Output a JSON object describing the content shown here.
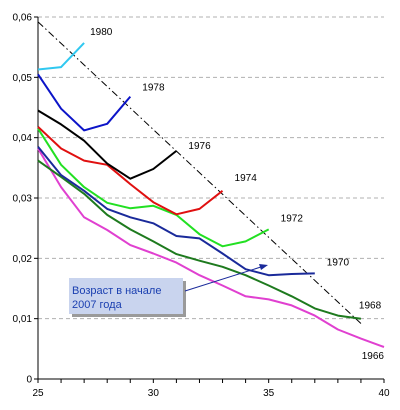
{
  "chart_data": {
    "type": "line",
    "title": "",
    "xlabel": "",
    "ylabel": "",
    "xlim": [
      25,
      40
    ],
    "ylim": [
      0,
      0.06
    ],
    "x_ticks": [
      25,
      30,
      35,
      40
    ],
    "y_ticks": [
      "0",
      "0,01",
      "0,02",
      "0,03",
      "0,04",
      "0,05",
      "0,06"
    ],
    "grid": "horizontal dashed",
    "series": [
      {
        "name": "1966",
        "color": "#e040d0",
        "x": [
          25,
          26,
          27,
          28,
          29,
          30,
          31,
          32,
          33,
          34,
          35,
          36,
          37,
          38,
          39,
          40
        ],
        "y": [
          0.0382,
          0.0318,
          0.0268,
          0.0247,
          0.0222,
          0.0208,
          0.0193,
          0.0172,
          0.0155,
          0.0137,
          0.0132,
          0.0122,
          0.0105,
          0.0082,
          0.0067,
          0.0053
        ]
      },
      {
        "name": "1968",
        "color": "#1e7a1e",
        "x": [
          25,
          26,
          27,
          28,
          29,
          30,
          31,
          32,
          33,
          34,
          35,
          36,
          37,
          38,
          39
        ],
        "y": [
          0.0362,
          0.0335,
          0.0307,
          0.0272,
          0.0248,
          0.0228,
          0.0207,
          0.0196,
          0.0186,
          0.0172,
          0.0155,
          0.0137,
          0.0117,
          0.0105,
          0.01
        ]
      },
      {
        "name": "1970",
        "color": "#1a2a9a",
        "x": [
          25,
          26,
          27,
          28,
          29,
          30,
          31,
          32,
          33,
          34,
          35,
          36,
          37
        ],
        "y": [
          0.0385,
          0.0338,
          0.0312,
          0.0282,
          0.0268,
          0.0258,
          0.0237,
          0.0233,
          0.0208,
          0.0182,
          0.0172,
          0.0174,
          0.0175
        ]
      },
      {
        "name": "1972",
        "color": "#22e022",
        "x": [
          25,
          26,
          27,
          28,
          29,
          30,
          31,
          32,
          33,
          34,
          35
        ],
        "y": [
          0.0415,
          0.0355,
          0.0318,
          0.0292,
          0.0283,
          0.0287,
          0.0272,
          0.024,
          0.022,
          0.0228,
          0.0248
        ]
      },
      {
        "name": "1974",
        "color": "#e01010",
        "x": [
          25,
          26,
          27,
          28,
          29,
          30,
          31,
          32,
          33
        ],
        "y": [
          0.0418,
          0.0382,
          0.0362,
          0.0355,
          0.0323,
          0.0293,
          0.0273,
          0.0282,
          0.0312
        ]
      },
      {
        "name": "1976",
        "color": "#000000",
        "x": [
          25,
          26,
          27,
          28,
          29,
          30,
          31
        ],
        "y": [
          0.0445,
          0.0422,
          0.0395,
          0.0357,
          0.0332,
          0.0348,
          0.0378
        ]
      },
      {
        "name": "1978",
        "color": "#0c14c8",
        "x": [
          25,
          26,
          27,
          28,
          29
        ],
        "y": [
          0.0505,
          0.0448,
          0.0412,
          0.0423,
          0.0468
        ]
      },
      {
        "name": "1980",
        "color": "#30c8f0",
        "x": [
          25,
          26,
          27
        ],
        "y": [
          0.0513,
          0.0517,
          0.0557
        ]
      }
    ],
    "trend_line": {
      "style": "dash-dot",
      "color": "#000000",
      "x": [
        25,
        39
      ],
      "y": [
        0.0592,
        0.0092
      ]
    },
    "annotation": {
      "text_lines": [
        "Возраст в начале",
        "2007 года"
      ],
      "arrow_color": "#1a2a9a"
    }
  }
}
